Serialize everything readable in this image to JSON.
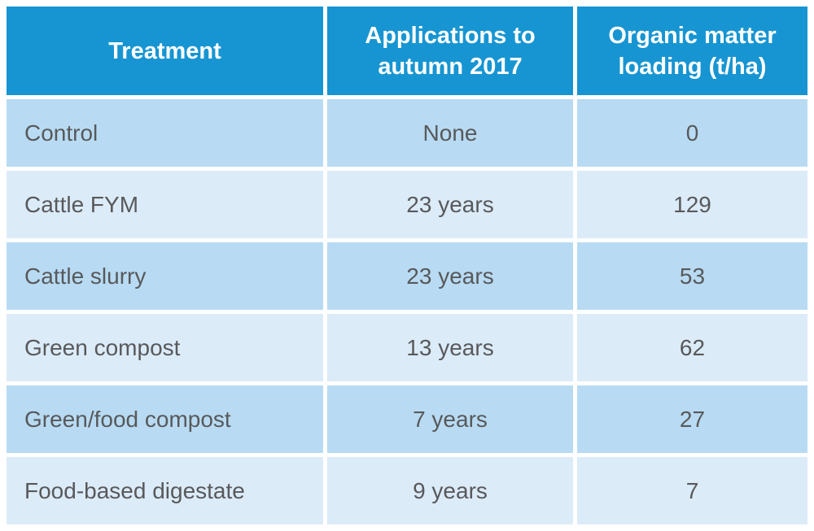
{
  "chart_data": {
    "type": "table",
    "title": "",
    "columns": [
      "Treatment",
      "Applications to autumn 2017",
      "Organic matter loading (t/ha)"
    ],
    "rows": [
      [
        "Control",
        "None",
        "0"
      ],
      [
        "Cattle FYM",
        "23 years",
        "129"
      ],
      [
        "Cattle slurry",
        "23 years",
        "53"
      ],
      [
        "Green compost",
        "13 years",
        "62"
      ],
      [
        "Green/food compost",
        "7 years",
        "27"
      ],
      [
        "Food-based digestate",
        "9 years",
        "7"
      ]
    ],
    "numeric": {
      "applications_years": {
        "Control": null,
        "Cattle FYM": 23,
        "Cattle slurry": 23,
        "Green compost": 13,
        "Green/food compost": 7,
        "Food-based digestate": 9
      },
      "organic_matter_loading_t_ha": {
        "Control": 0,
        "Cattle FYM": 129,
        "Cattle slurry": 53,
        "Green compost": 62,
        "Green/food compost": 27,
        "Food-based digestate": 7
      }
    }
  },
  "colors": {
    "header_bg": "#1795d2",
    "header_text": "#ffffff",
    "row_odd_bg": "#b8dbf3",
    "row_even_bg": "#dcebf8",
    "text": "#58595b",
    "background": "#ffffff"
  }
}
